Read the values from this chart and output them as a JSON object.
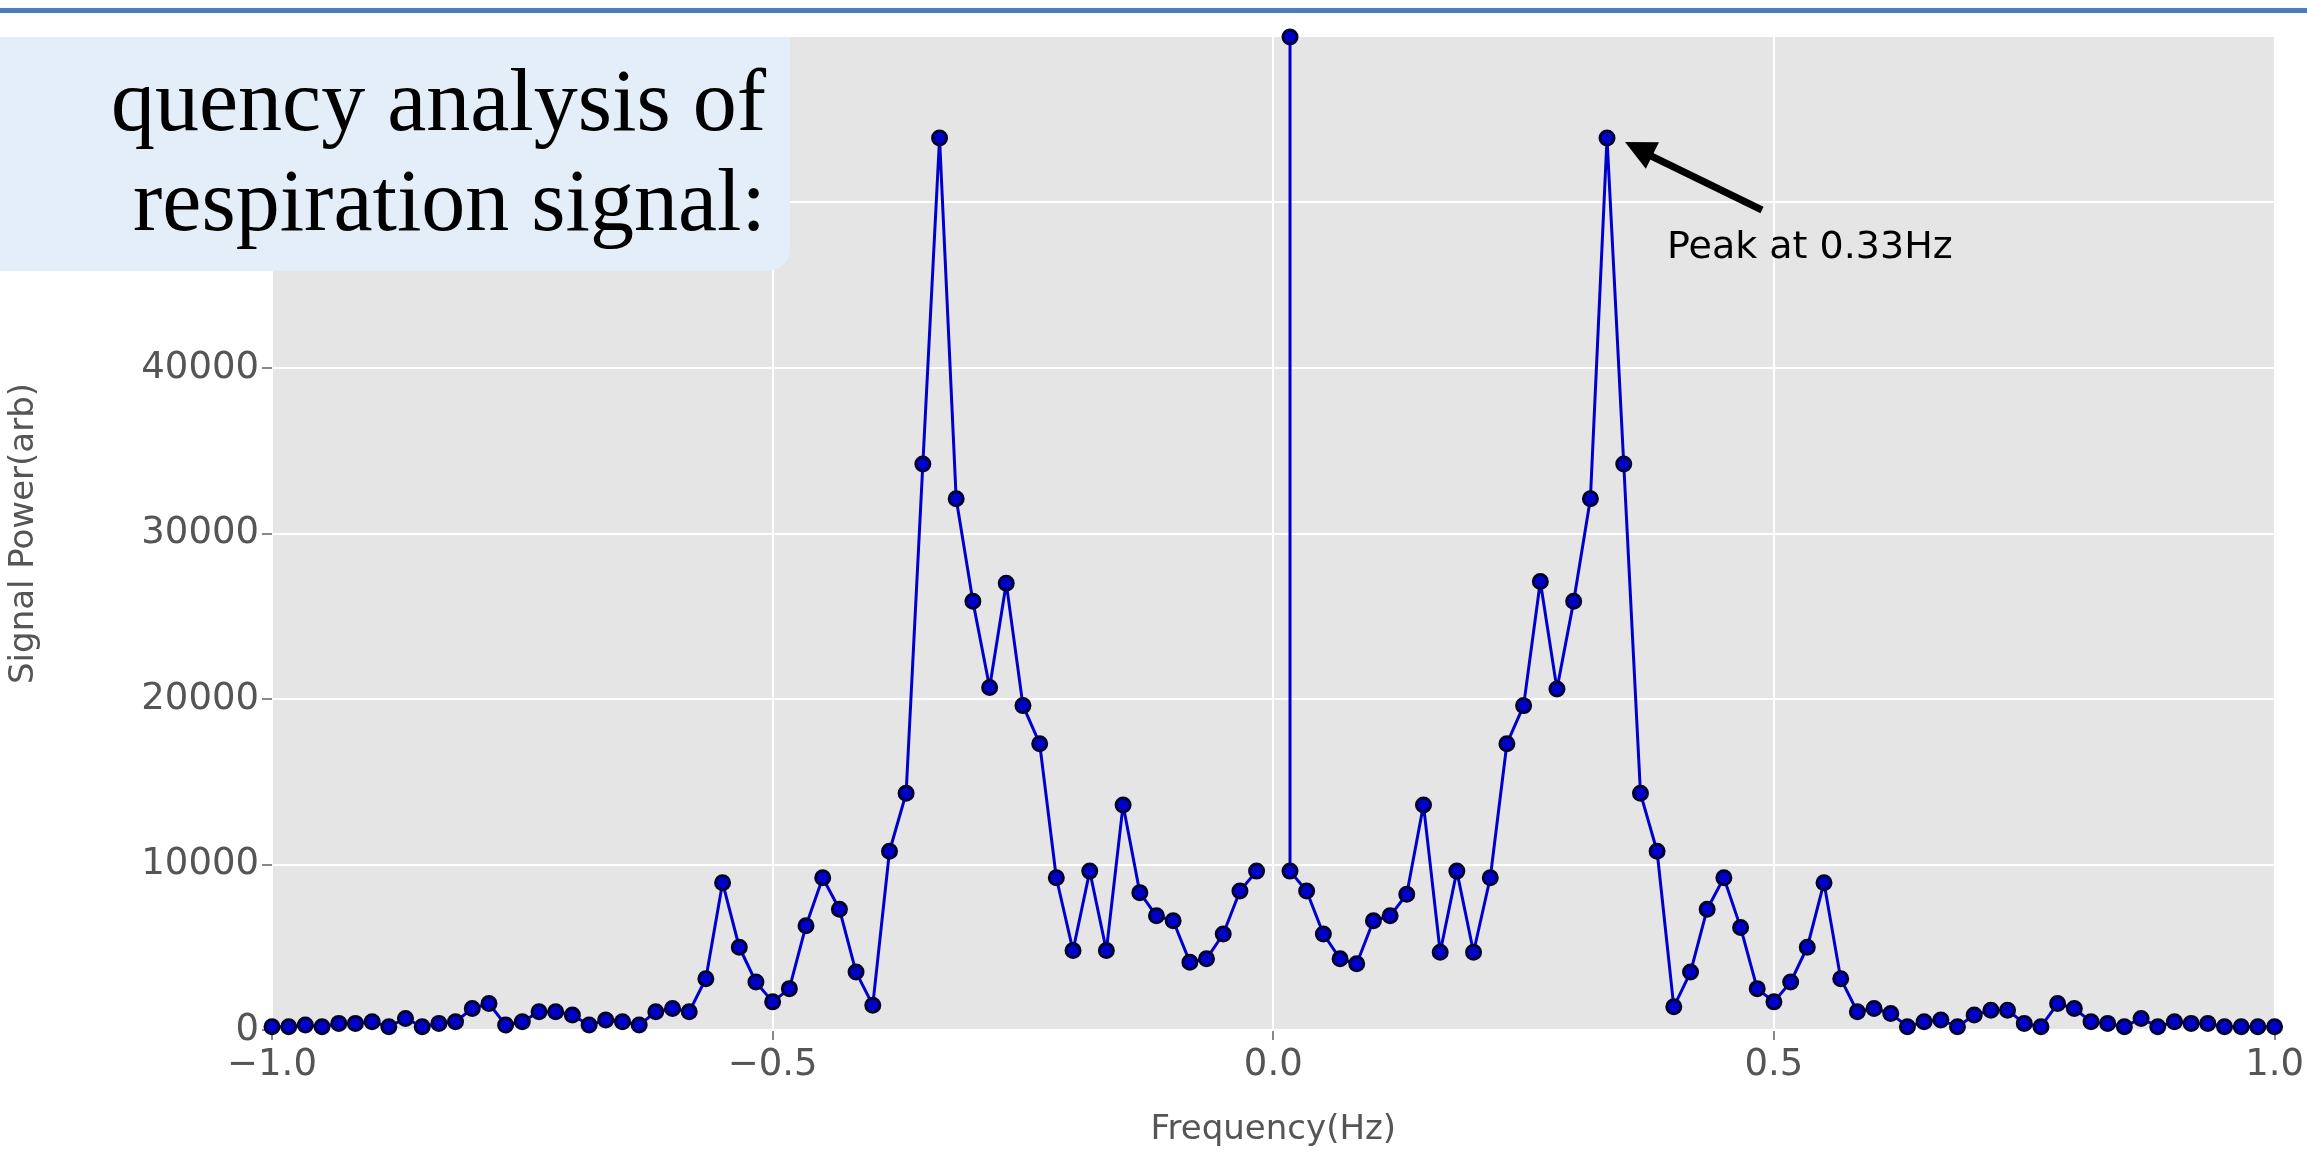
{
  "chart_data": {
    "type": "line",
    "title": "quency analysis of respiration signal:",
    "xlabel": "Frequency(Hz)",
    "ylabel": "Signal Power(arb)",
    "x": [
      -1,
      -0.9833,
      -0.9667,
      -0.95,
      -0.9333,
      -0.9167,
      -0.9,
      -0.8833,
      -0.8667,
      -0.85,
      -0.8333,
      -0.8167,
      -0.8,
      -0.7833,
      -0.7667,
      -0.75,
      -0.7333,
      -0.7167,
      -0.7,
      -0.6833,
      -0.6667,
      -0.65,
      -0.6333,
      -0.6167,
      -0.6,
      -0.5833,
      -0.5667,
      -0.55,
      -0.5333,
      -0.5167,
      -0.5,
      -0.4833,
      -0.4667,
      -0.45,
      -0.4333,
      -0.4167,
      -0.4,
      -0.3833,
      -0.3667,
      -0.35,
      -0.3333,
      -0.3167,
      -0.3,
      -0.2833,
      -0.2667,
      -0.25,
      -0.2333,
      -0.2167,
      -0.2,
      -0.1833,
      -0.1667,
      -0.15,
      -0.1333,
      -0.1167,
      -0.1,
      -0.0833,
      -0.0667,
      -0.05,
      -0.0333,
      -0.0167,
      0,
      0.0167,
      0.0167,
      0.0333,
      0.05,
      0.0667,
      0.0833,
      0.1,
      0.1167,
      0.1333,
      0.15,
      0.1667,
      0.1833,
      0.2,
      0.2167,
      0.2333,
      0.25,
      0.2667,
      0.2833,
      0.3,
      0.3167,
      0.3333,
      0.35,
      0.3667,
      0.3833,
      0.4,
      0.4167,
      0.4333,
      0.45,
      0.4667,
      0.4833,
      0.5,
      0.5167,
      0.5333,
      0.55,
      0.5667,
      0.5833,
      0.6,
      0.6167,
      0.6333,
      0.65,
      0.6667,
      0.6833,
      0.7,
      0.7167,
      0.7333,
      0.75,
      0.7667,
      0.7833,
      0.8,
      0.8167,
      0.8333,
      0.85,
      0.8667,
      0.8833,
      0.9,
      0.9167,
      0.9333,
      0.95,
      0.9667,
      0.9833,
      1
    ],
    "series": [
      {
        "color": "#0000cc",
        "values": [
          200,
          200,
          300,
          200,
          400,
          400,
          500,
          200,
          700,
          200,
          400,
          500,
          1300,
          1600,
          300,
          500,
          1100,
          1100,
          900,
          300,
          600,
          500,
          300,
          1100,
          1300,
          1100,
          3100,
          8900,
          5000,
          2900,
          1700,
          2500,
          6300,
          9200,
          7300,
          3500,
          1500,
          10800,
          14300,
          34200,
          53900,
          32100,
          25900,
          20700,
          27000,
          19600,
          17300,
          9200,
          4800,
          9600,
          4800,
          13600,
          8300,
          6900,
          6600,
          4100,
          4300,
          5800,
          8400,
          9600,
          null,
          60000,
          9600,
          8400,
          5800,
          4300,
          4000,
          6600,
          6900,
          8200,
          13600,
          4700,
          9600,
          4700,
          9200,
          17300,
          19600,
          27100,
          20600,
          25900,
          32100,
          53900,
          34200,
          14300,
          10800,
          1400,
          3500,
          7300,
          9200,
          6200,
          2500,
          1700,
          2900,
          5000,
          8900,
          3100,
          1100,
          1300,
          1000,
          200,
          500,
          600,
          200,
          900,
          1200,
          1200,
          400,
          200,
          1600,
          1300,
          500,
          400,
          200,
          700,
          200,
          500,
          400,
          400,
          200,
          200,
          200,
          200
        ]
      }
    ],
    "xlim": [
      -1,
      1
    ],
    "ylim": [
      0,
      60000
    ],
    "xticks": [
      {
        "value": -1,
        "label": "−1.0"
      },
      {
        "value": -0.5,
        "label": "−0.5"
      },
      {
        "value": 0,
        "label": "0.0"
      },
      {
        "value": 0.5,
        "label": "0.5"
      },
      {
        "value": 1,
        "label": "1.0"
      }
    ],
    "yticks": [
      0,
      10000,
      20000,
      30000,
      40000,
      {
        "value": 50000,
        "label": null
      }
    ],
    "annotations": [
      {
        "text": "Peak at 0.33Hz",
        "x": 0.3333,
        "y": 53900
      }
    ],
    "grid": true,
    "marker": "circle",
    "line_style": "solid",
    "legend": false
  }
}
